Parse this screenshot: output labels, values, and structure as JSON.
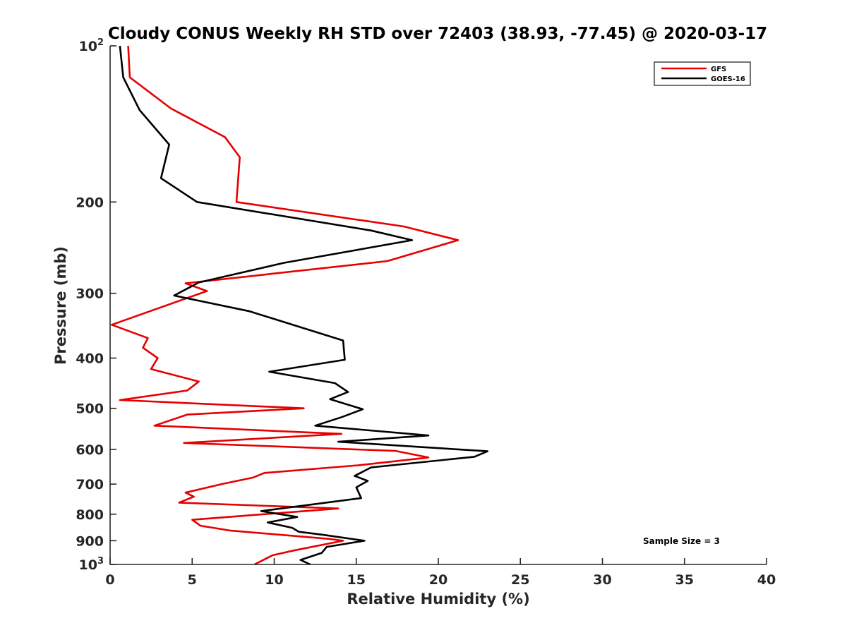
{
  "chart_data": {
    "type": "line",
    "title": "Cloudy CONUS Weekly RH STD over 72403 (38.93, -77.45) @ 2020-03-17",
    "xlabel": "Relative Humidity (%)",
    "ylabel": "Pressure (mb)",
    "xlim": [
      0,
      40
    ],
    "ylim": [
      100,
      1000
    ],
    "y_scale": "log",
    "y_reversed": true,
    "grid": false,
    "legend_position": "top-right",
    "x_ticks": [
      "0",
      "5",
      "10",
      "15",
      "20",
      "25",
      "30",
      "35",
      "40"
    ],
    "y_ticks": [
      {
        "value": 100,
        "base": "10",
        "exp": "2"
      },
      {
        "value": 200,
        "label": "200"
      },
      {
        "value": 300,
        "label": "300"
      },
      {
        "value": 400,
        "label": "400"
      },
      {
        "value": 500,
        "label": "500"
      },
      {
        "value": 600,
        "label": "600"
      },
      {
        "value": 700,
        "label": "700"
      },
      {
        "value": 800,
        "label": "800"
      },
      {
        "value": 900,
        "label": "900"
      },
      {
        "value": 1000,
        "base": "10",
        "exp": "3"
      }
    ],
    "annotation": "Sample Size = 3",
    "series": [
      {
        "name": "GFS",
        "color": "#e60000",
        "points": [
          [
            1.1,
            100
          ],
          [
            1.2,
            115
          ],
          [
            3.7,
            132
          ],
          [
            7.0,
            150
          ],
          [
            7.9,
            164
          ],
          [
            7.7,
            200
          ],
          [
            17.9,
            223
          ],
          [
            21.2,
            237
          ],
          [
            16.9,
            260
          ],
          [
            4.6,
            287
          ],
          [
            5.9,
            297
          ],
          [
            0.1,
            345
          ],
          [
            2.3,
            366
          ],
          [
            2.0,
            382
          ],
          [
            2.9,
            400
          ],
          [
            2.5,
            420
          ],
          [
            5.4,
            444
          ],
          [
            4.7,
            462
          ],
          [
            0.6,
            482
          ],
          [
            11.8,
            500
          ],
          [
            4.7,
            514
          ],
          [
            2.7,
            540
          ],
          [
            14.1,
            560
          ],
          [
            4.5,
            583
          ],
          [
            17.4,
            604
          ],
          [
            19.4,
            622
          ],
          [
            15.1,
            644
          ],
          [
            9.4,
            666
          ],
          [
            8.7,
            680
          ],
          [
            6.8,
            700
          ],
          [
            4.6,
            727
          ],
          [
            5.1,
            740
          ],
          [
            4.2,
            760
          ],
          [
            13.9,
            780
          ],
          [
            5.0,
            820
          ],
          [
            5.5,
            842
          ],
          [
            7.3,
            860
          ],
          [
            13.4,
            893
          ],
          [
            14.2,
            900
          ],
          [
            11.2,
            940
          ],
          [
            9.9,
            960
          ],
          [
            8.8,
            1000
          ]
        ]
      },
      {
        "name": "GOES-16",
        "color": "#000000",
        "points": [
          [
            0.6,
            100
          ],
          [
            0.8,
            115
          ],
          [
            1.8,
            133
          ],
          [
            3.6,
            155
          ],
          [
            3.1,
            180
          ],
          [
            5.3,
            200
          ],
          [
            15.9,
            227
          ],
          [
            18.4,
            237
          ],
          [
            10.6,
            262
          ],
          [
            5.4,
            286
          ],
          [
            3.9,
            303
          ],
          [
            8.5,
            325
          ],
          [
            14.2,
            370
          ],
          [
            14.3,
            403
          ],
          [
            9.7,
            425
          ],
          [
            13.7,
            447
          ],
          [
            14.5,
            465
          ],
          [
            13.4,
            480
          ],
          [
            15.4,
            502
          ],
          [
            14.1,
            520
          ],
          [
            12.5,
            540
          ],
          [
            19.4,
            564
          ],
          [
            13.9,
            580
          ],
          [
            23.0,
            605
          ],
          [
            22.2,
            620
          ],
          [
            15.9,
            650
          ],
          [
            14.9,
            675
          ],
          [
            15.7,
            690
          ],
          [
            15.0,
            710
          ],
          [
            15.3,
            745
          ],
          [
            9.2,
            789
          ],
          [
            11.4,
            810
          ],
          [
            9.6,
            830
          ],
          [
            11.1,
            850
          ],
          [
            11.5,
            865
          ],
          [
            13.0,
            877
          ],
          [
            15.5,
            900
          ],
          [
            13.2,
            925
          ],
          [
            12.9,
            950
          ],
          [
            11.6,
            980
          ],
          [
            12.2,
            1000
          ]
        ]
      }
    ]
  }
}
